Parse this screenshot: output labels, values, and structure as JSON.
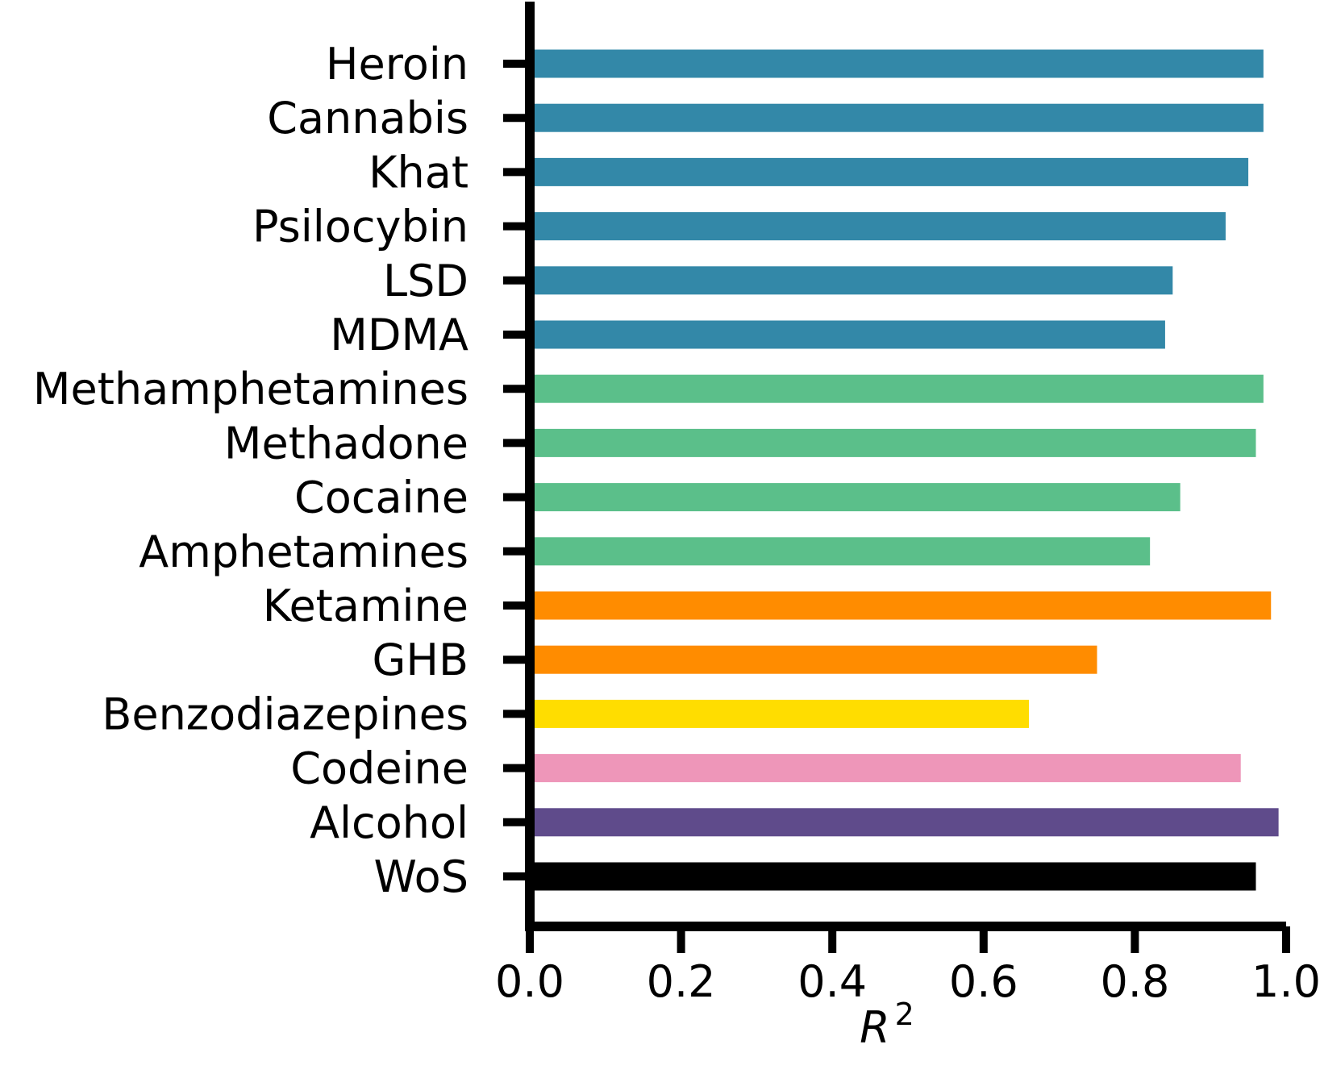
{
  "chart_data": {
    "type": "bar",
    "orientation": "horizontal",
    "categories": [
      "Heroin",
      "Cannabis",
      "Khat",
      "Psilocybin",
      "LSD",
      "MDMA",
      "Methamphetamines",
      "Methadone",
      "Cocaine",
      "Amphetamines",
      "Ketamine",
      "GHB",
      "Benzodiazepines",
      "Codeine",
      "Alcohol",
      "WoS"
    ],
    "values": [
      0.97,
      0.97,
      0.95,
      0.92,
      0.85,
      0.84,
      0.97,
      0.96,
      0.86,
      0.82,
      0.98,
      0.75,
      0.66,
      0.94,
      0.99,
      0.96
    ],
    "bar_colors": [
      "#3388a8",
      "#3388a8",
      "#3388a8",
      "#3388a8",
      "#3388a8",
      "#3388a8",
      "#5bbf8a",
      "#5bbf8a",
      "#5bbf8a",
      "#5bbf8a",
      "#ff8c00",
      "#ff8c00",
      "#ffdd00",
      "#ee96b9",
      "#5f4b8b",
      "#000000"
    ],
    "xlabel": "R",
    "xlabel_superscript": "2",
    "xlim": [
      0.0,
      1.0
    ],
    "xticks": [
      0.0,
      0.2,
      0.4,
      0.6,
      0.8,
      1.0
    ],
    "xtick_labels": [
      "0.0",
      "0.2",
      "0.4",
      "0.6",
      "0.8",
      "1.0"
    ],
    "grid": false,
    "legend": "none"
  }
}
